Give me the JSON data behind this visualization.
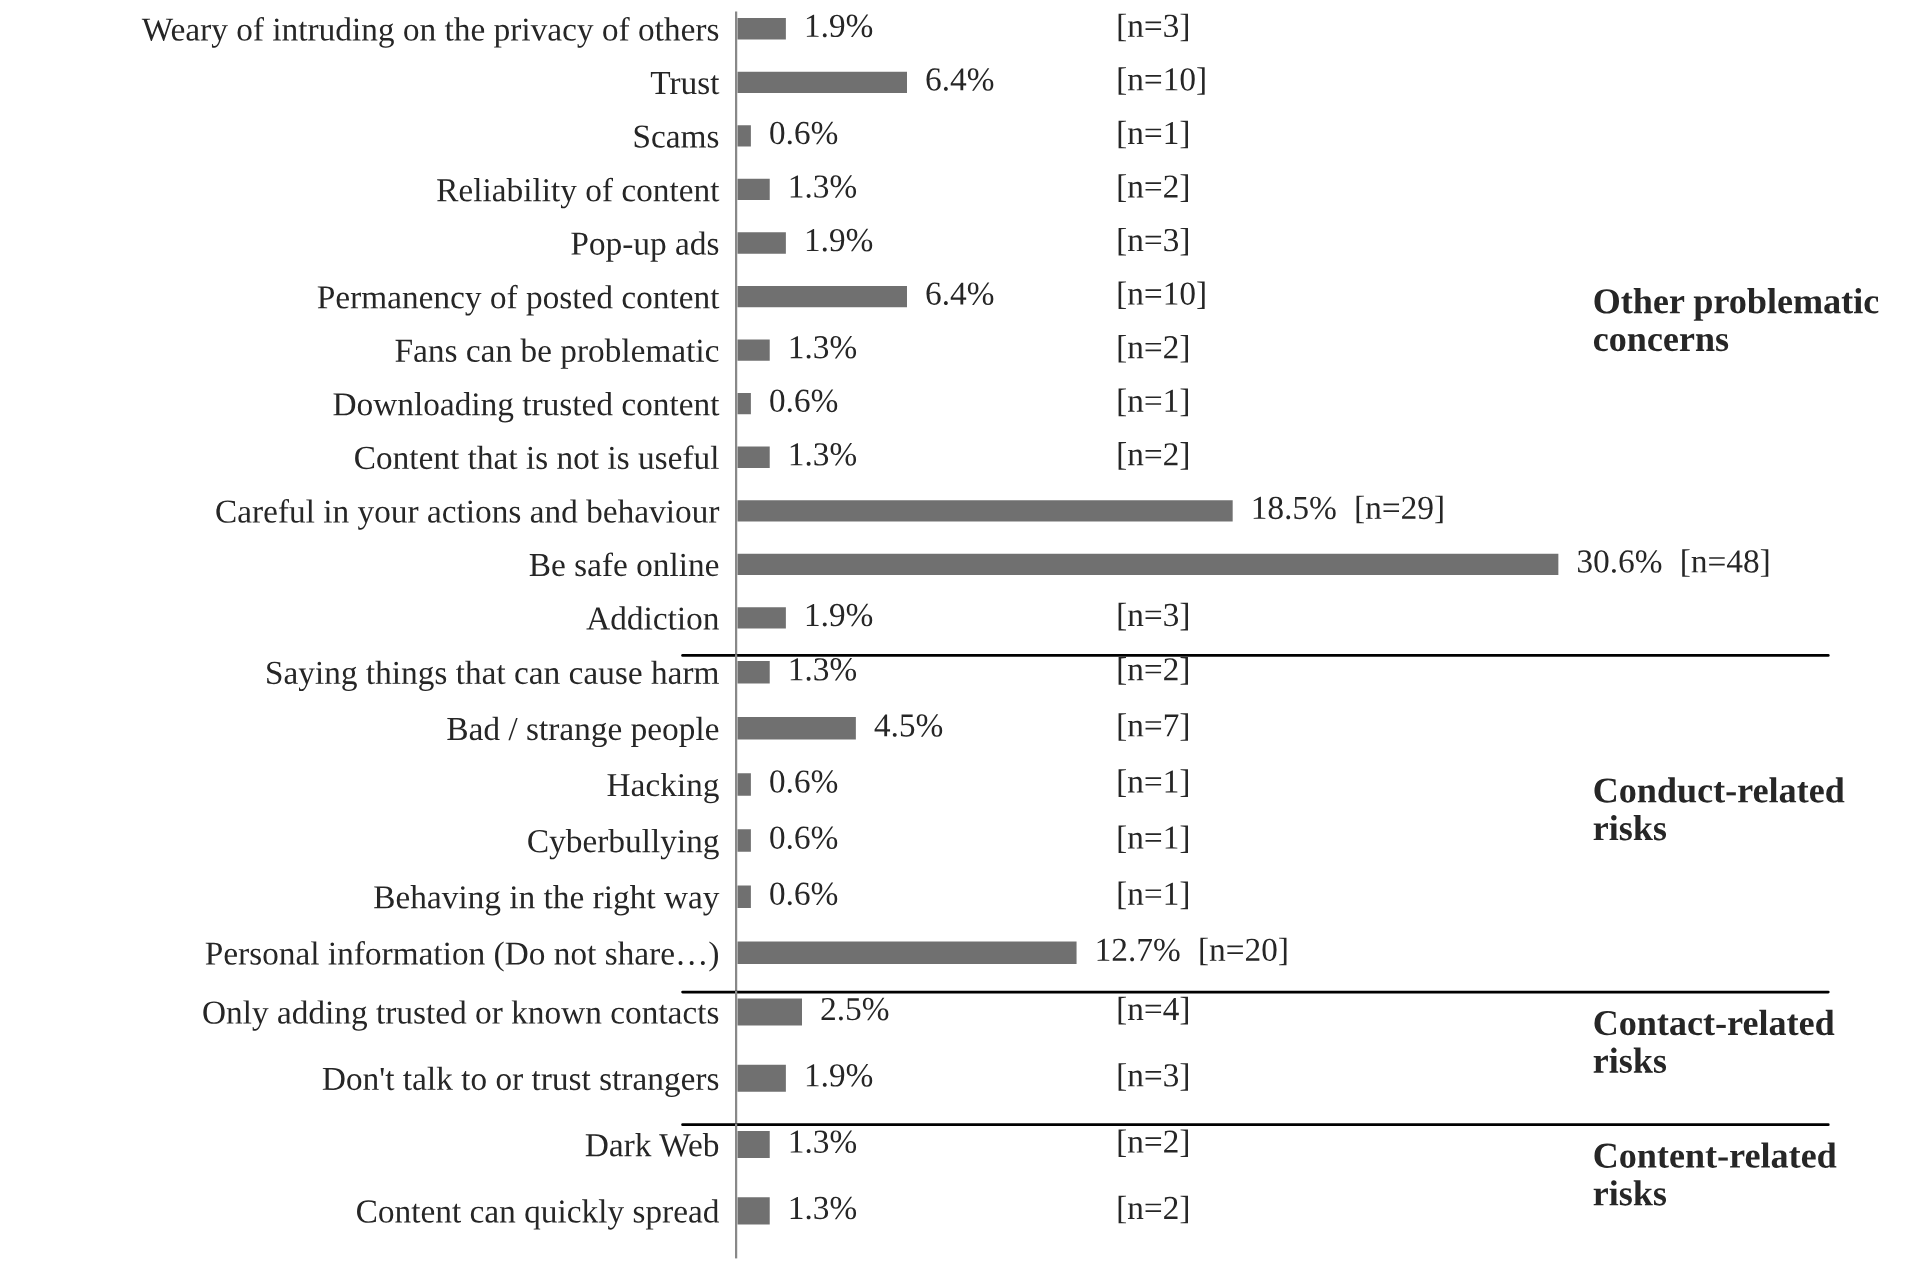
{
  "chart_data": [
    {
      "type": "bar",
      "orientation": "horizontal",
      "color": "#707070",
      "categories": [
        "Weary of intruding on the privacy of others",
        "Trust",
        "Scams",
        "Reliability of content",
        "Pop-up ads",
        "Permanency of posted content",
        "Fans can be problematic",
        "Downloading trusted content",
        "Content that is not is useful",
        "Careful in your actions and behaviour",
        "Be safe online",
        "Addiction"
      ],
      "values": [
        1.9,
        6.4,
        0.6,
        1.3,
        1.9,
        6.4,
        1.3,
        0.6,
        1.3,
        18.5,
        30.6,
        1.9
      ],
      "value_labels": [
        "1.9%",
        "6.4%",
        "0.6%",
        "1.3%",
        "1.9%",
        "6.4%",
        "1.3%",
        "0.6%",
        "1.3%",
        "18.5%",
        "30.6%",
        "1.9%"
      ],
      "annotations": [
        "[n=3]",
        "[n=10]",
        "[n=1]",
        "[n=2]",
        "[n=3]",
        "[n=10]",
        "[n=2]",
        "[n=1]",
        "[n=2]",
        "[n=29]",
        "[n=48]",
        "[n=3]",
        "Other problematic concerns"
      ]
    },
    {
      "type": "bar",
      "orientation": "horizontal",
      "color": "#707070",
      "categories": [
        "Saying things that can cause harm",
        "Bad / strange people",
        "Hacking",
        "Cyberbullying",
        "Behaving in the right way",
        "Personal information (Do not share…)"
      ],
      "values": [
        1.3,
        4.5,
        0.6,
        0.6,
        0.6,
        12.7
      ],
      "value_labels": [
        "1.3%",
        "4.5%",
        "0.6%",
        "0.6%",
        "0.6%",
        "12.7%"
      ],
      "annotations": [
        "[n=2]",
        "[n=7]",
        "[n=1]",
        "[n=1]",
        "[n=1]",
        "[n=20]",
        "Conduct-related risks"
      ]
    },
    {
      "type": "bar",
      "orientation": "horizontal",
      "color": "#707070",
      "categories": [
        "Only adding trusted or known contacts",
        "Don't talk to or trust strangers"
      ],
      "values": [
        2.5,
        1.9
      ],
      "value_labels": [
        "2.5%",
        "1.9%"
      ],
      "annotations": [
        "[n=4]",
        "[n=3]",
        "Contact-related risks"
      ]
    },
    {
      "type": "bar",
      "orientation": "horizontal",
      "color": "#707070",
      "categories": [
        "Dark Web",
        "Content can quickly spread"
      ],
      "values": [
        1.3,
        1.3
      ],
      "value_labels": [
        "1.3%",
        "1.3%"
      ],
      "annotations": [
        "[n=2]",
        "[n=2]",
        "Content-related risks"
      ]
    }
  ]
}
